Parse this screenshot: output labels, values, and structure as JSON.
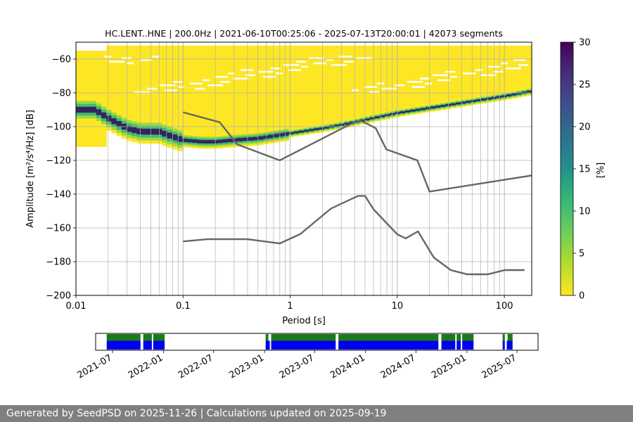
{
  "chart_data": {
    "type": "heatmap",
    "title": "HC.LENT..HNE | 200.0Hz | 2021-06-10T00:25:06 - 2025-07-13T20:00:01 | 42073 segments",
    "xlabel": "Period [s]",
    "ylabel": "Amplitude [m²/s⁴/Hz] [dB]",
    "x_scale": "log",
    "xlim": [
      0.01,
      180
    ],
    "ylim": [
      -200,
      -50
    ],
    "x_ticks": [
      {
        "value": 0.01,
        "label": "0.01"
      },
      {
        "value": 0.1,
        "label": "0.1"
      },
      {
        "value": 1,
        "label": "1"
      },
      {
        "value": 10,
        "label": "10"
      },
      {
        "value": 100,
        "label": "100"
      }
    ],
    "y_ticks": [
      -200,
      -180,
      -160,
      -140,
      -120,
      -100,
      -80,
      -60
    ],
    "grid": true,
    "colorbar": {
      "label": "[%]",
      "range": [
        0,
        30
      ],
      "ticks": [
        0,
        5,
        10,
        15,
        20,
        25,
        30
      ],
      "colormap": "viridis_r"
    },
    "mode_curve": {
      "name": "mode",
      "x": [
        0.015,
        0.02,
        0.03,
        0.04,
        0.06,
        0.08,
        0.1,
        0.15,
        0.2,
        0.3,
        0.5,
        0.8,
        1,
        2,
        3,
        5,
        10,
        20,
        50,
        100,
        180
      ],
      "y": [
        -90,
        -95,
        -101,
        -103,
        -103,
        -106,
        -108,
        -109,
        -109,
        -108,
        -107,
        -105,
        -104,
        -101,
        -99,
        -96,
        -92,
        -89,
        -85,
        -82,
        -79
      ]
    },
    "high_noise_model": {
      "x": [
        0.1,
        0.22,
        0.32,
        0.8,
        3.8,
        4.6,
        6.3,
        7.9,
        15.4,
        20,
        354.8
      ],
      "y": [
        -91.5,
        -97.4,
        -110.5,
        -120,
        -98,
        -96.5,
        -101,
        -113.5,
        -120,
        -138.5,
        -126
      ]
    },
    "low_noise_model": {
      "x": [
        0.1,
        0.17,
        0.4,
        0.8,
        1.24,
        2.4,
        4.3,
        5,
        6,
        10,
        12,
        15.6,
        21.9,
        31.6,
        45,
        70,
        101,
        154
      ],
      "y": [
        -168,
        -166.7,
        -166.7,
        -169.2,
        -163.7,
        -148.6,
        -141.1,
        -141.1,
        -149,
        -163.8,
        -166.2,
        -162.1,
        -177.5,
        -185,
        -187.5,
        -187.5,
        -185,
        -185
      ]
    },
    "timeline": {
      "tick_labels": [
        "2021-07",
        "2022-01",
        "2022-07",
        "2023-01",
        "2023-07",
        "2024-01",
        "2024-07",
        "2025-01",
        "2025-07"
      ],
      "range": [
        "2021-05-01",
        "2025-09-15"
      ],
      "coverage_blue": [
        [
          "2021-06-10",
          "2021-10-10"
        ],
        [
          "2021-10-20",
          "2021-11-20"
        ],
        [
          "2021-11-25",
          "2022-01-05"
        ],
        [
          "2023-01-05",
          "2023-01-20"
        ],
        [
          "2023-01-25",
          "2023-09-15"
        ],
        [
          "2023-09-25",
          "2024-09-20"
        ],
        [
          "2024-10-01",
          "2024-11-20"
        ],
        [
          "2024-11-25",
          "2024-12-10"
        ],
        [
          "2024-12-15",
          "2025-01-25"
        ],
        [
          "2025-05-10",
          "2025-05-18"
        ],
        [
          "2025-05-25",
          "2025-06-15"
        ]
      ],
      "coverage_green": [
        [
          "2021-06-10",
          "2021-10-10"
        ],
        [
          "2021-10-20",
          "2021-11-20"
        ],
        [
          "2021-11-25",
          "2022-01-05"
        ],
        [
          "2023-01-05",
          "2023-01-15"
        ],
        [
          "2023-01-25",
          "2023-09-15"
        ],
        [
          "2023-09-25",
          "2024-09-20"
        ],
        [
          "2024-10-01",
          "2024-11-20"
        ],
        [
          "2024-11-25",
          "2024-12-10"
        ],
        [
          "2024-12-15",
          "2025-01-25"
        ],
        [
          "2025-05-10",
          "2025-05-18"
        ],
        [
          "2025-05-28",
          "2025-06-15"
        ]
      ]
    }
  },
  "footer": {
    "text": "Generated by SeedPSD on 2025-11-26 | Calculations updated on 2025-09-19"
  }
}
